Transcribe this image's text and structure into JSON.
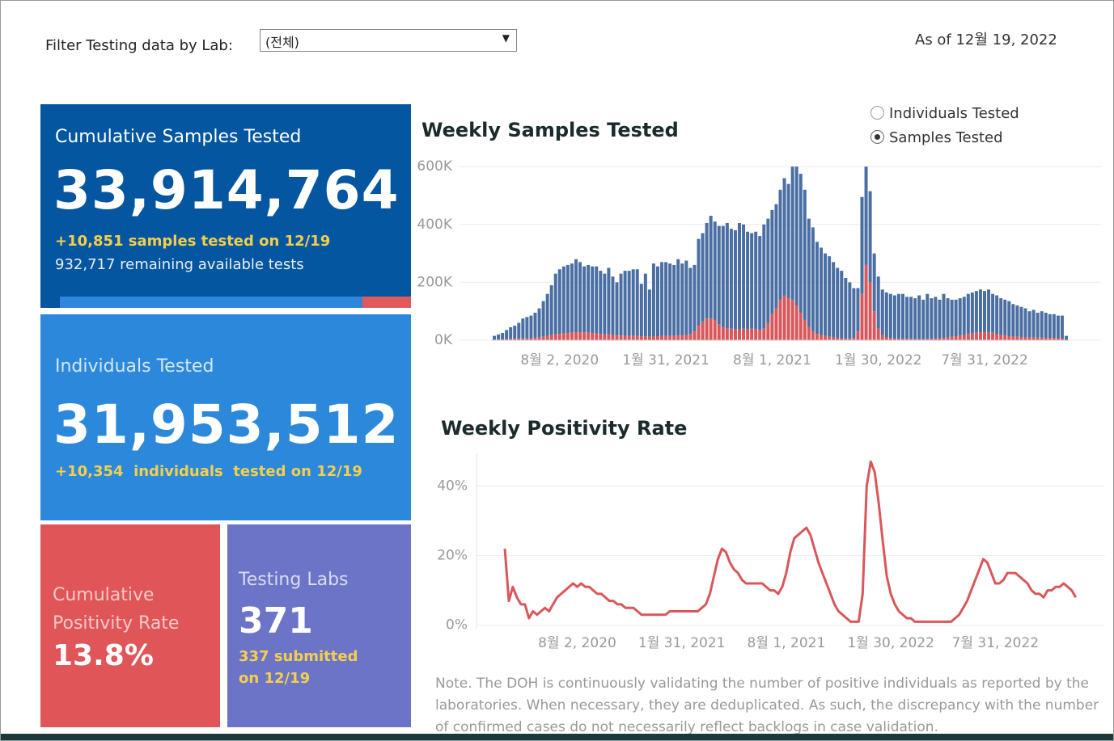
{
  "filter_label": "Filter Testing data by Lab:",
  "filter_value": "(전체)",
  "as_of": "As of 12월 19, 2022",
  "radio_options": [
    "Individuals Tested",
    "Samples Tested"
  ],
  "cards": {
    "samples": {
      "title": "Cumulative Samples Tested",
      "value": "33,914,764",
      "delta": "+10,851 samples tested on 12/19",
      "remaining": "932,717 remaining available tests"
    },
    "individuals": {
      "title": "Individuals Tested",
      "value": "31,953,512",
      "delta": "+10,354  individuals  tested on 12/19"
    },
    "positivity": {
      "title": "Cumulative Positivity Rate",
      "value": "13.8%"
    },
    "labs": {
      "title": "Testing Labs",
      "value": "371",
      "delta": "337 submitted on 12/19"
    }
  },
  "note": "Note. The DOH is continuously validating the number of positive individuals as reported by the laboratories. When necessary, they are deduplicated. As such, the discrepancy with the number of confirmed cases do not necessarily reflect backlogs in case validation.",
  "chart_data": [
    {
      "type": "bar",
      "title": "Weekly Samples Tested",
      "stacked": true,
      "grid": true,
      "categories": [
        null,
        null,
        null,
        null,
        null,
        null,
        null,
        null,
        null,
        null,
        null,
        null,
        null,
        null,
        null,
        null,
        "8월 2, 2020",
        null,
        null,
        null,
        null,
        null,
        null,
        null,
        null,
        null,
        null,
        null,
        null,
        null,
        null,
        null,
        null,
        null,
        null,
        null,
        null,
        null,
        null,
        null,
        null,
        null,
        "1월 31, 2021",
        null,
        null,
        null,
        null,
        null,
        null,
        null,
        null,
        null,
        null,
        null,
        null,
        null,
        null,
        null,
        null,
        null,
        null,
        null,
        null,
        null,
        null,
        null,
        null,
        null,
        "8월 1, 2021",
        null,
        null,
        null,
        null,
        null,
        null,
        null,
        null,
        null,
        null,
        null,
        null,
        null,
        null,
        null,
        null,
        null,
        null,
        null,
        null,
        null,
        null,
        null,
        null,
        null,
        "1월 30, 2022",
        null,
        null,
        null,
        null,
        null,
        null,
        null,
        null,
        null,
        null,
        null,
        null,
        null,
        null,
        null,
        null,
        null,
        null,
        null,
        null,
        null,
        null,
        null,
        null,
        null,
        "7월 31, 2022",
        null,
        null,
        null,
        null,
        null,
        null,
        null,
        null,
        null,
        null,
        null,
        null,
        null,
        null,
        null,
        null,
        null,
        null,
        null,
        null
      ],
      "series": [
        {
          "color": "#d9575b",
          "values": [
            2,
            3,
            3,
            4,
            5,
            5,
            6,
            6,
            6,
            7,
            8,
            10,
            12,
            15,
            18,
            20,
            22,
            25,
            25,
            26,
            28,
            28,
            27,
            26,
            25,
            24,
            22,
            20,
            20,
            18,
            16,
            16,
            15,
            15,
            15,
            15,
            14,
            14,
            12,
            14,
            14,
            15,
            15,
            15,
            15,
            16,
            16,
            18,
            20,
            30,
            50,
            65,
            75,
            75,
            70,
            55,
            45,
            40,
            40,
            38,
            38,
            40,
            38,
            40,
            38,
            36,
            40,
            60,
            90,
            110,
            140,
            155,
            145,
            140,
            120,
            95,
            70,
            45,
            30,
            22,
            18,
            15,
            12,
            10,
            8,
            7,
            6,
            6,
            8,
            30,
            160,
            260,
            200,
            100,
            40,
            18,
            10,
            8,
            6,
            5,
            5,
            5,
            5,
            4,
            4,
            4,
            5,
            5,
            6,
            7,
            8,
            10,
            12,
            14,
            16,
            18,
            22,
            24,
            26,
            28,
            28,
            27,
            26,
            22,
            18,
            16,
            14,
            12,
            12,
            11,
            10,
            10,
            9,
            9,
            9,
            8,
            8,
            8,
            7,
            7,
            1
          ]
        },
        {
          "color": "#4b6fa3",
          "values": [
            13,
            17,
            22,
            31,
            40,
            45,
            54,
            69,
            74,
            78,
            87,
            100,
            123,
            145,
            172,
            210,
            223,
            230,
            235,
            239,
            252,
            242,
            228,
            234,
            230,
            231,
            218,
            210,
            230,
            202,
            184,
            214,
            225,
            225,
            230,
            230,
            181,
            216,
            163,
            251,
            241,
            255,
            255,
            250,
            245,
            264,
            249,
            257,
            230,
            230,
            300,
            305,
            330,
            355,
            340,
            340,
            350,
            365,
            345,
            342,
            367,
            360,
            337,
            330,
            337,
            324,
            360,
            360,
            360,
            360,
            380,
            405,
            395,
            460,
            480,
            480,
            450,
            375,
            360,
            318,
            302,
            285,
            278,
            260,
            242,
            233,
            209,
            194,
            172,
            150,
            335,
            340,
            315,
            200,
            180,
            157,
            155,
            152,
            149,
            155,
            155,
            145,
            145,
            141,
            151,
            136,
            155,
            140,
            144,
            133,
            152,
            135,
            128,
            126,
            129,
            132,
            138,
            141,
            144,
            147,
            142,
            148,
            134,
            133,
            127,
            124,
            121,
            113,
            108,
            104,
            100,
            90,
            96,
            86,
            91,
            87,
            82,
            82,
            78,
            78,
            14
          ]
        }
      ],
      "ylim": [
        0,
        620
      ],
      "yticks": [
        {
          "value": 0,
          "label": "0K"
        },
        {
          "value": 200,
          "label": "200K"
        },
        {
          "value": 400,
          "label": "400K"
        },
        {
          "value": 600,
          "label": "600K"
        }
      ]
    },
    {
      "type": "line",
      "title": "Weekly Positivity Rate",
      "grid": true,
      "color": "#d9575b",
      "categories": [
        null,
        null,
        null,
        null,
        null,
        null,
        null,
        null,
        null,
        null,
        null,
        null,
        null,
        null,
        null,
        null,
        null,
        null,
        "8월 2, 2020",
        null,
        null,
        null,
        null,
        null,
        null,
        null,
        null,
        null,
        null,
        null,
        null,
        null,
        null,
        null,
        null,
        null,
        null,
        null,
        null,
        null,
        null,
        null,
        null,
        null,
        "1월 31, 2021",
        null,
        null,
        null,
        null,
        null,
        null,
        null,
        null,
        null,
        null,
        null,
        null,
        null,
        null,
        null,
        null,
        null,
        null,
        null,
        null,
        null,
        null,
        null,
        null,
        null,
        "8월 1, 2021",
        null,
        null,
        null,
        null,
        null,
        null,
        null,
        null,
        null,
        null,
        null,
        null,
        null,
        null,
        null,
        null,
        null,
        null,
        null,
        null,
        null,
        null,
        null,
        null,
        null,
        "1월 30, 2022",
        null,
        null,
        null,
        null,
        null,
        null,
        null,
        null,
        null,
        null,
        null,
        null,
        null,
        null,
        null,
        null,
        null,
        null,
        null,
        null,
        null,
        null,
        null,
        null,
        null,
        "7월 31, 2022",
        null,
        null,
        null,
        null,
        null,
        null,
        null,
        null,
        null,
        null,
        null,
        null,
        null,
        null,
        null,
        null,
        null,
        null,
        null,
        null
      ],
      "values": [
        22,
        7,
        11,
        8,
        6,
        6,
        2,
        4,
        3,
        4,
        5,
        4,
        6,
        8,
        9,
        10,
        11,
        12,
        11,
        12,
        11,
        11,
        10,
        9,
        9,
        8,
        7,
        7,
        6,
        6,
        5,
        5,
        5,
        4,
        3,
        3,
        3,
        3,
        3,
        3,
        3,
        4,
        4,
        4,
        4,
        4,
        4,
        4,
        4,
        5,
        6,
        9,
        14,
        19,
        22,
        21,
        18,
        16,
        15,
        13,
        12,
        12,
        12,
        12,
        12,
        11,
        10,
        10,
        9,
        11,
        15,
        21,
        25,
        26,
        27,
        28,
        26,
        22,
        18,
        15,
        12,
        9,
        6,
        4,
        3,
        2,
        1,
        1,
        1,
        9,
        40,
        47,
        44,
        35,
        24,
        14,
        9,
        6,
        4,
        3,
        2,
        2,
        1,
        1,
        1,
        1,
        1,
        1,
        1,
        1,
        1,
        1,
        2,
        3,
        5,
        7,
        10,
        13,
        16,
        19,
        18,
        15,
        12,
        12,
        13,
        15,
        15,
        15,
        14,
        13,
        12,
        10,
        9,
        9,
        8,
        10,
        10,
        11,
        11,
        12,
        11,
        10,
        8
      ],
      "ylim": [
        -1,
        48
      ],
      "yticks": [
        {
          "value": 0,
          "label": "0%"
        },
        {
          "value": 20,
          "label": "20%"
        },
        {
          "value": 40,
          "label": "40%"
        }
      ]
    }
  ]
}
